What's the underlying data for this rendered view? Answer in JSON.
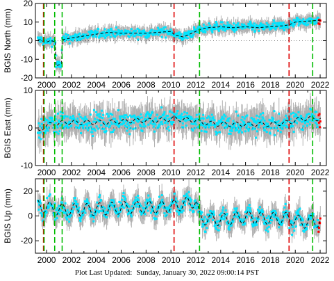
{
  "chart_data": [
    {
      "type": "scatter",
      "panel": "north",
      "ylabel": "BGIS North (mm)",
      "ylim": [
        -20,
        20
      ],
      "yticks": [
        "-20",
        "-10",
        "0",
        "10",
        "20"
      ],
      "xlim": [
        1999.1,
        2022.5
      ],
      "xticks": [
        "2000",
        "2002",
        "2004",
        "2006",
        "2008",
        "2010",
        "2012",
        "2014",
        "2016",
        "2018",
        "2020",
        "2022"
      ],
      "model_points": [
        [
          1999.5,
          0.5
        ],
        [
          1999.9,
          -1.0
        ],
        [
          2000.3,
          0.0
        ],
        [
          2000.7,
          -0.5
        ],
        [
          2000.75,
          -13.5
        ],
        [
          2001.2,
          -12.5
        ],
        [
          2001.25,
          0.5
        ],
        [
          2002.0,
          1.5
        ],
        [
          2003.0,
          2.5
        ],
        [
          2004.0,
          3.5
        ],
        [
          2005.0,
          4.5
        ],
        [
          2006.0,
          4.0
        ],
        [
          2007.0,
          4.0
        ],
        [
          2008.0,
          4.0
        ],
        [
          2009.0,
          4.5
        ],
        [
          2010.0,
          5.0
        ],
        [
          2010.3,
          3.0
        ],
        [
          2011.0,
          2.0
        ],
        [
          2012.0,
          5.0
        ],
        [
          2012.3,
          6.0
        ],
        [
          2013.0,
          7.0
        ],
        [
          2014.0,
          7.5
        ],
        [
          2015.0,
          7.0
        ],
        [
          2016.0,
          7.5
        ],
        [
          2017.0,
          7.0
        ],
        [
          2018.0,
          7.5
        ],
        [
          2019.0,
          8.0
        ],
        [
          2019.5,
          8.5
        ],
        [
          2020.0,
          10.0
        ],
        [
          2021.0,
          10.5
        ],
        [
          2022.0,
          11.0
        ]
      ],
      "noise_sd": 1.2
    },
    {
      "type": "scatter",
      "panel": "east",
      "ylabel": "BGIS East (mm)",
      "ylim": [
        -10,
        10
      ],
      "yticks": [
        "-10",
        "0",
        "10"
      ],
      "xlim": [
        1999.1,
        2022.5
      ],
      "xticks": [
        "2000",
        "2002",
        "2004",
        "2006",
        "2008",
        "2010",
        "2012",
        "2014",
        "2016",
        "2018",
        "2020",
        "2022"
      ],
      "model_points": [
        [
          1999.4,
          -1.0
        ],
        [
          1999.8,
          0.5
        ],
        [
          2000.5,
          1.0
        ],
        [
          2001.5,
          1.5
        ],
        [
          2003.0,
          1.5
        ],
        [
          2005.0,
          1.5
        ],
        [
          2007.0,
          2.0
        ],
        [
          2009.0,
          2.0
        ],
        [
          2010.3,
          2.5
        ],
        [
          2012.0,
          2.0
        ],
        [
          2012.3,
          1.5
        ],
        [
          2014.0,
          1.0
        ],
        [
          2016.0,
          1.0
        ],
        [
          2018.0,
          1.0
        ],
        [
          2019.5,
          1.5
        ],
        [
          2020.5,
          2.5
        ],
        [
          2022.0,
          2.5
        ]
      ],
      "seasonal_amp": 0.6,
      "noise_sd": 1.3
    },
    {
      "type": "scatter",
      "panel": "up",
      "ylabel": "BGIS Up (mm)",
      "ylim": [
        -30,
        30
      ],
      "yticks": [
        "-20",
        "0",
        "20"
      ],
      "xlim": [
        1999.1,
        2022.5
      ],
      "xticks": [
        "2000",
        "2002",
        "2004",
        "2006",
        "2008",
        "2010",
        "2012",
        "2014",
        "2016",
        "2018",
        "2020",
        "2022"
      ],
      "model_points": [
        [
          1999.4,
          8.0
        ],
        [
          2001.0,
          5.0
        ],
        [
          2003.0,
          5.0
        ],
        [
          2005.0,
          6.0
        ],
        [
          2007.0,
          7.0
        ],
        [
          2009.0,
          7.0
        ],
        [
          2010.3,
          8.0
        ],
        [
          2012.0,
          12.0
        ],
        [
          2012.3,
          -2.0
        ],
        [
          2014.0,
          -3.0
        ],
        [
          2016.0,
          -1.0
        ],
        [
          2018.0,
          -2.0
        ],
        [
          2019.5,
          -2.0
        ],
        [
          2020.5,
          -5.0
        ],
        [
          2022.0,
          -4.0
        ]
      ],
      "seasonal_amp": 5.0,
      "noise_sd": 3.0
    }
  ],
  "events": [
    {
      "year": 1999.75,
      "color": "#dd0000"
    },
    {
      "year": 1999.8,
      "color": "#00bb00"
    },
    {
      "year": 2000.65,
      "color": "#00bb00"
    },
    {
      "year": 2001.25,
      "color": "#00bb00"
    },
    {
      "year": 2010.25,
      "color": "#dd0000"
    },
    {
      "year": 2012.3,
      "color": "#00bb00"
    },
    {
      "year": 2019.5,
      "color": "#dd0000"
    },
    {
      "year": 2021.4,
      "color": "#00bb00"
    }
  ],
  "colors": {
    "data": "#00e5ff",
    "errorbar": "#b0b0b0",
    "model": "#000000",
    "recent": "#ff0000"
  },
  "footer": {
    "label": "Plot Last Updated:",
    "timestamp": "Sunday, January 30, 2022 09:00:14 PST"
  }
}
